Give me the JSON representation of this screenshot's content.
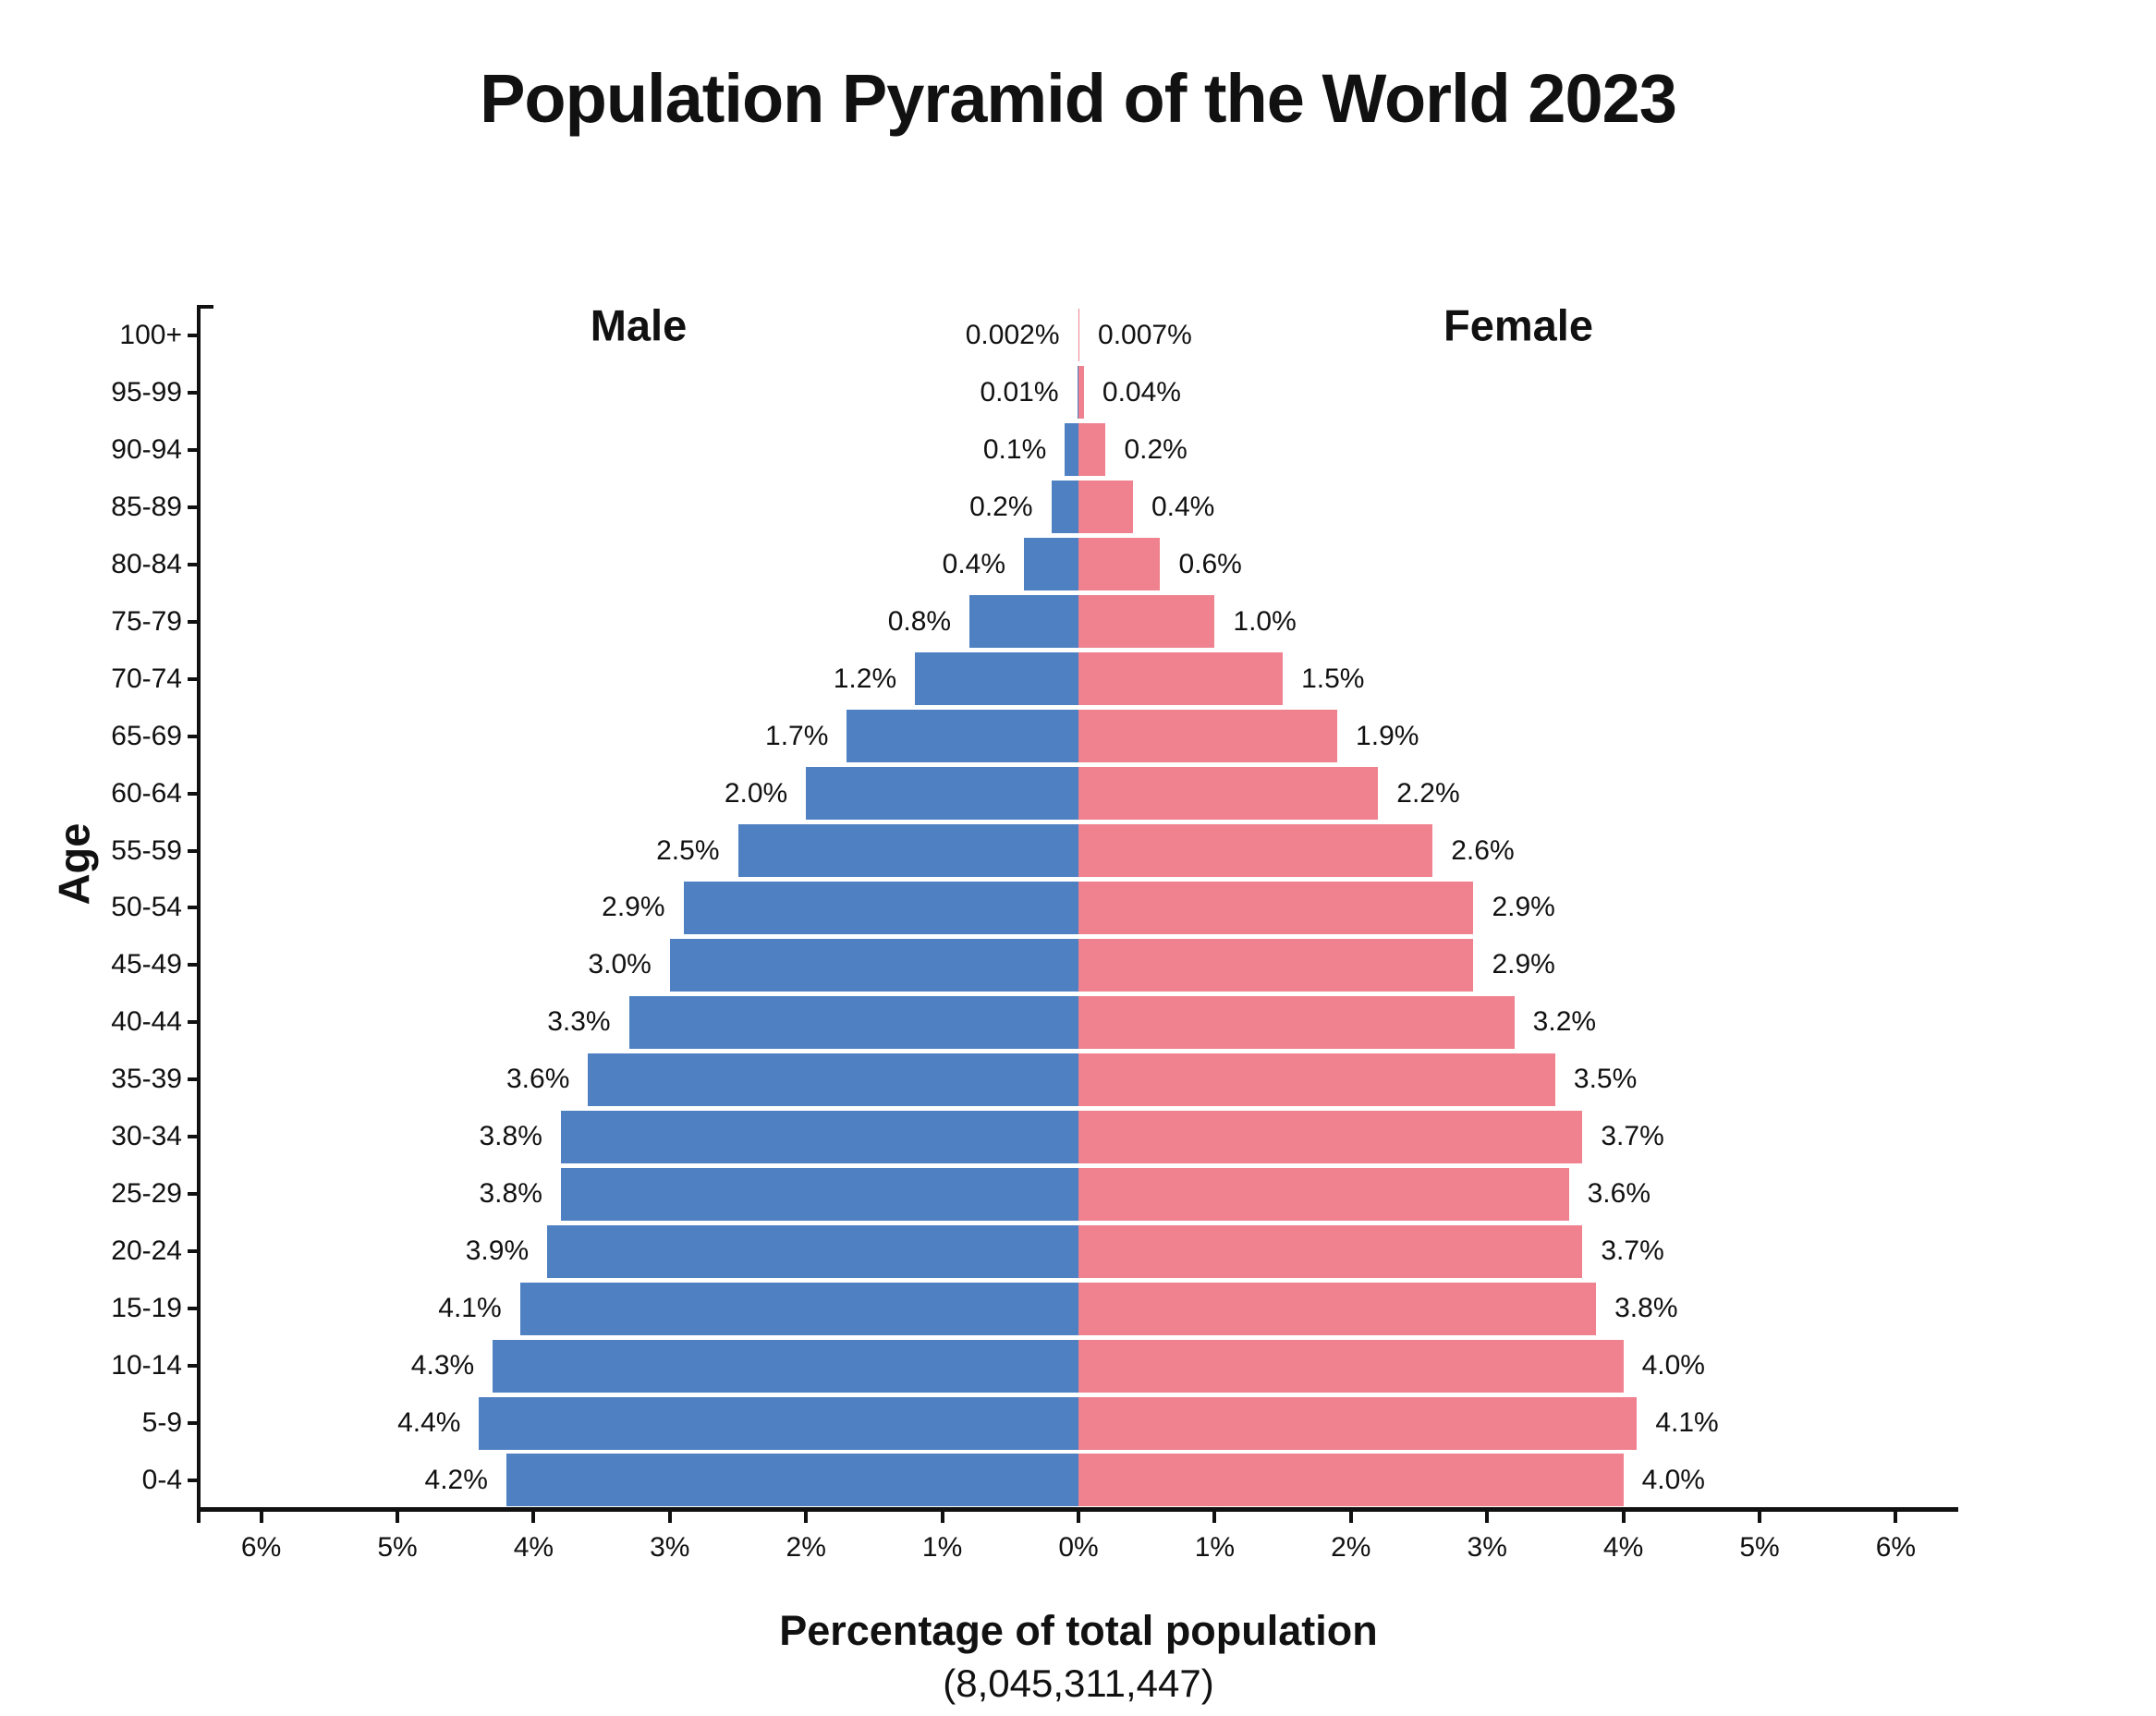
{
  "chart": {
    "title": "Population Pyramid of the World 2023",
    "male_header": "Male",
    "female_header": "Female",
    "y_axis_label": "Age",
    "x_axis_label": "Percentage of total population",
    "total_population_display": "(8,045,311,447)"
  },
  "colors": {
    "male_bar": "#4e80c2",
    "female_bar": "#f0818f",
    "text": "#111111",
    "axis": "#111111",
    "background": "#ffffff"
  },
  "chart_data": {
    "type": "bar",
    "subtype": "population-pyramid",
    "orientation": "horizontal, male left / female right, mirrored from center",
    "title": "Population Pyramid of the World 2023",
    "xlabel": "Percentage of total population",
    "xlabel_subtitle": "(8,045,311,447)",
    "ylabel": "Age",
    "grid": false,
    "legend_position": "inline headers above each half",
    "categories_top_to_bottom": [
      "100+",
      "95-99",
      "90-94",
      "85-89",
      "80-84",
      "75-79",
      "70-74",
      "65-69",
      "60-64",
      "55-59",
      "50-54",
      "45-49",
      "40-44",
      "35-39",
      "30-34",
      "25-29",
      "20-24",
      "15-19",
      "10-14",
      "5-9",
      "0-4"
    ],
    "series": [
      {
        "name": "Male",
        "side": "left",
        "unit": "% of total population",
        "values": [
          0.002,
          0.01,
          0.1,
          0.2,
          0.4,
          0.8,
          1.2,
          1.7,
          2.0,
          2.5,
          2.9,
          3.0,
          3.3,
          3.6,
          3.8,
          3.8,
          3.9,
          4.1,
          4.3,
          4.4,
          4.2
        ],
        "labels": [
          "0.002%",
          "0.01%",
          "0.1%",
          "0.2%",
          "0.4%",
          "0.8%",
          "1.2%",
          "1.7%",
          "2.0%",
          "2.5%",
          "2.9%",
          "3.0%",
          "3.3%",
          "3.6%",
          "3.8%",
          "3.8%",
          "3.9%",
          "4.1%",
          "4.3%",
          "4.4%",
          "4.2%"
        ]
      },
      {
        "name": "Female",
        "side": "right",
        "unit": "% of total population",
        "values": [
          0.007,
          0.04,
          0.2,
          0.4,
          0.6,
          1.0,
          1.5,
          1.9,
          2.2,
          2.6,
          2.9,
          2.9,
          3.2,
          3.5,
          3.7,
          3.6,
          3.7,
          3.8,
          4.0,
          4.1,
          4.0
        ],
        "labels": [
          "0.007%",
          "0.04%",
          "0.2%",
          "0.4%",
          "0.6%",
          "1.0%",
          "1.5%",
          "1.9%",
          "2.2%",
          "2.6%",
          "2.9%",
          "2.9%",
          "3.2%",
          "3.5%",
          "3.7%",
          "3.6%",
          "3.7%",
          "3.8%",
          "4.0%",
          "4.1%",
          "4.0%"
        ]
      }
    ],
    "x_tick_values": [
      -6,
      -5,
      -4,
      -3,
      -2,
      -1,
      0,
      1,
      2,
      3,
      4,
      5,
      6
    ],
    "x_tick_labels": [
      "6%",
      "5%",
      "4%",
      "3%",
      "2%",
      "1%",
      "0%",
      "1%",
      "2%",
      "3%",
      "4%",
      "5%",
      "6%"
    ],
    "xlim": [
      -6.46,
      6.46
    ]
  }
}
